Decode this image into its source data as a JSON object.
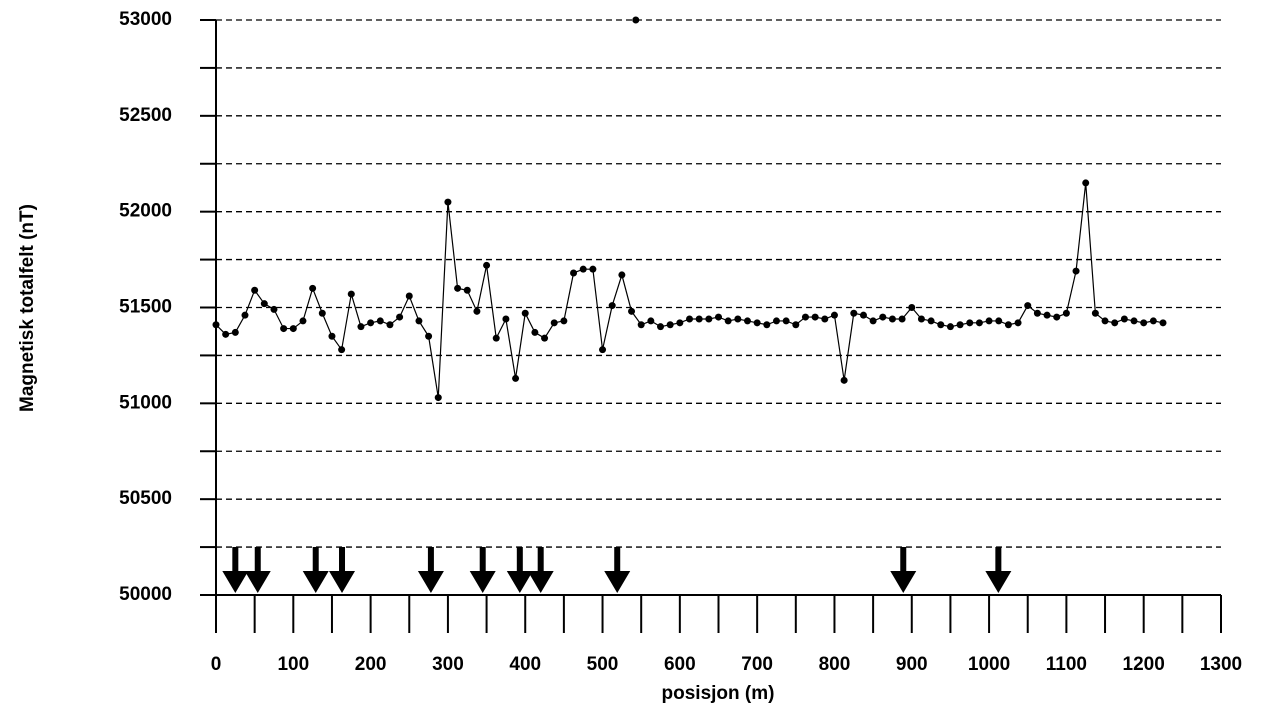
{
  "chart_data": {
    "type": "line",
    "y_label": "Magnetisk totalfelt (nT)",
    "x_label": "posisjon (m)",
    "xlim": [
      0,
      1300
    ],
    "xticks": [
      0,
      100,
      200,
      300,
      400,
      500,
      600,
      700,
      800,
      900,
      1000,
      1100,
      1200,
      1300
    ],
    "xminor": [
      50,
      150,
      250,
      350,
      450,
      550,
      650,
      750,
      850,
      950,
      1050,
      1150,
      1250
    ],
    "ylim": [
      50000,
      53000
    ],
    "yticks": [
      50000,
      50500,
      51000,
      51500,
      52000,
      52500,
      53000
    ],
    "yminor": [
      50250,
      50750,
      51250,
      51750,
      52250,
      52750
    ],
    "grid": true,
    "color": "#000000",
    "series": [
      {
        "x": [
          0,
          12.5,
          25,
          37.5,
          50,
          62.5,
          75,
          87.5,
          100,
          112.5,
          125,
          137.5,
          150,
          162.5,
          175,
          187.5,
          200,
          212.5,
          225,
          237.5,
          250,
          262.5,
          275,
          287.5,
          300,
          312.5,
          325,
          337.5,
          350,
          362.5,
          375,
          387.5,
          400,
          412.5,
          425,
          437.5,
          450,
          462.5,
          475,
          487.5,
          500,
          512.5,
          525,
          537.5,
          550,
          562.5,
          575,
          587.5,
          600,
          612.5,
          625,
          637.5,
          650,
          662.5,
          675,
          687.5,
          700,
          712.5,
          725,
          737.5,
          750,
          762.5,
          775,
          787.5,
          800,
          812.5,
          825,
          837.5,
          850,
          862.5,
          875,
          887.5,
          900,
          912.5,
          925,
          937.5,
          950,
          962.5,
          975,
          987.5,
          1000,
          1012.5,
          1025,
          1037.5,
          1050,
          1062.5,
          1075,
          1087.5,
          1100,
          1112.5,
          1125,
          1137.5,
          1150,
          1162.5,
          1175,
          1187.5,
          1200,
          1212.5,
          1225
        ],
        "values": [
          51410,
          51360,
          51370,
          51460,
          51590,
          51520,
          51490,
          51390,
          51390,
          51430,
          51600,
          51470,
          51350,
          51280,
          51570,
          51400,
          51420,
          51430,
          51410,
          51450,
          51560,
          51430,
          51350,
          51030,
          52050,
          51600,
          51590,
          51480,
          51720,
          51340,
          51440,
          51130,
          51470,
          51370,
          51340,
          51420,
          51430,
          51680,
          51700,
          51700,
          51280,
          51510,
          51670,
          51480,
          51410,
          51430,
          51400,
          51410,
          51420,
          51440,
          51440,
          51440,
          51450,
          51430,
          51440,
          51430,
          51420,
          51410,
          51430,
          51430,
          51410,
          51450,
          51450,
          51440,
          51460,
          51120,
          51470,
          51460,
          51430,
          51450,
          51440,
          51440,
          51500,
          51440,
          51430,
          51410,
          51400,
          51410,
          51420,
          51420,
          51430,
          51430,
          51410,
          51420,
          51510,
          51470,
          51460,
          51450,
          51470,
          51690,
          52150,
          51470,
          51430,
          51420,
          51440,
          51430,
          51420,
          51430,
          51420
        ]
      },
      {
        "x": [
          543
        ],
        "values": [
          53000
        ]
      }
    ],
    "arrows_x": [
      25,
      54,
      129,
      163,
      278,
      345,
      393,
      420,
      519,
      889,
      1012
    ]
  }
}
